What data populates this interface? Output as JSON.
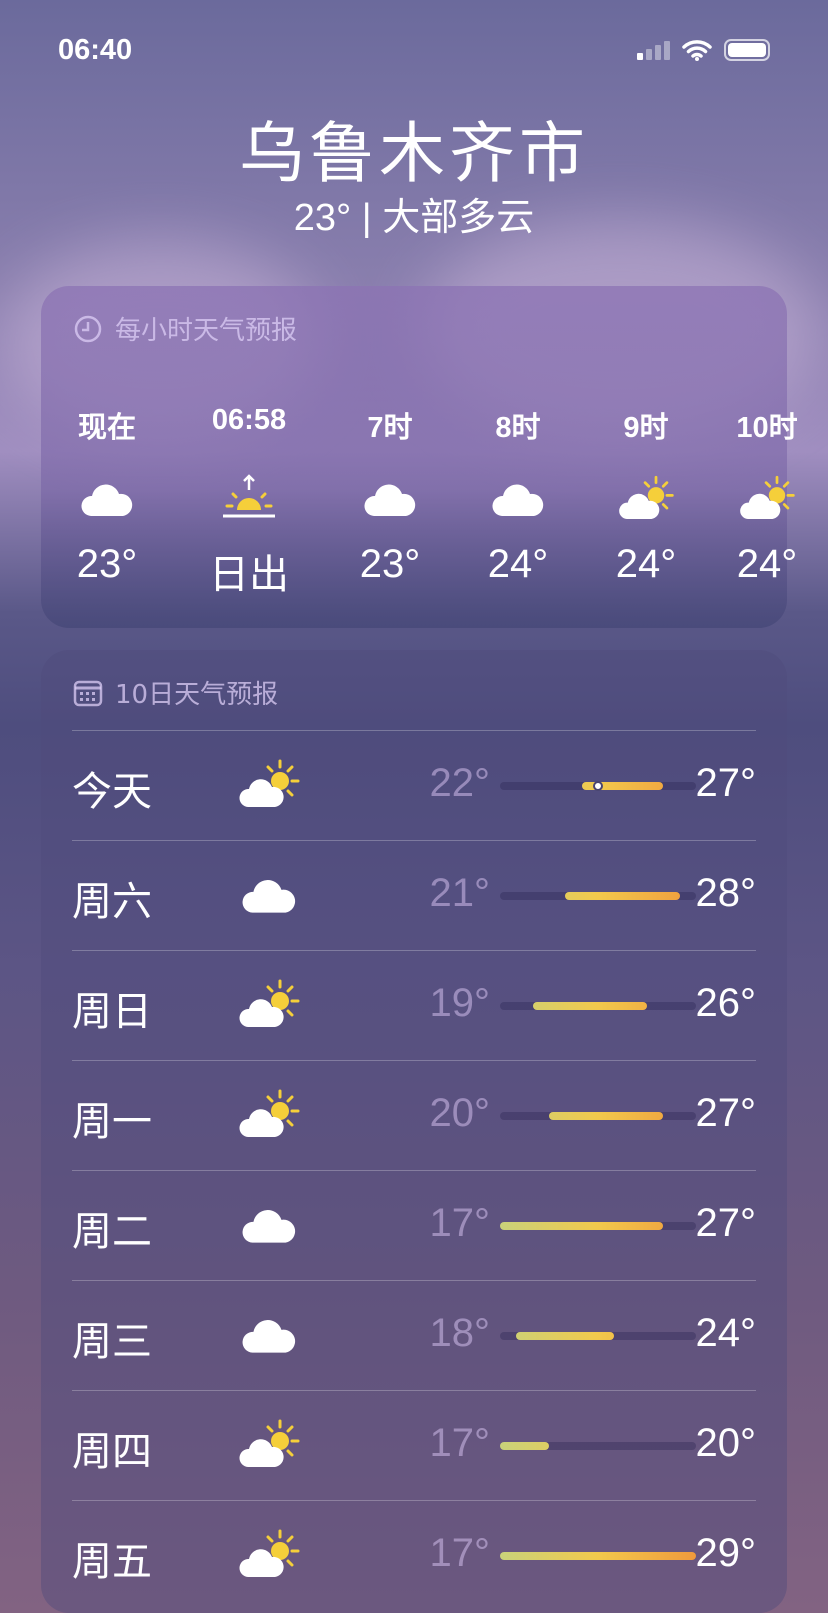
{
  "status": {
    "time": "06:40"
  },
  "header": {
    "city": "乌鲁木齐市",
    "subtitle": "23° | 大部多云"
  },
  "hourly": {
    "title": "每小时天气预报",
    "items": [
      {
        "label": "现在",
        "icon": "cloud-icon",
        "value": "23°"
      },
      {
        "label": "06:58",
        "icon": "sunrise-icon",
        "value": "日出"
      },
      {
        "label": "7时",
        "icon": "cloud-icon",
        "value": "23°"
      },
      {
        "label": "8时",
        "icon": "cloud-icon",
        "value": "24°"
      },
      {
        "label": "9时",
        "icon": "partly-cloudy-icon",
        "value": "24°"
      },
      {
        "label": "10时",
        "icon": "partly-cloudy-icon",
        "value": "24°"
      }
    ]
  },
  "daily": {
    "title": "10日天气预报",
    "range": [
      17,
      29
    ],
    "current": 23,
    "items": [
      {
        "day": "今天",
        "icon": "partly-cloudy-icon",
        "lo": "22°",
        "hi": "27°",
        "low": 22,
        "high": 27
      },
      {
        "day": "周六",
        "icon": "cloud-icon",
        "lo": "21°",
        "hi": "28°",
        "low": 21,
        "high": 28
      },
      {
        "day": "周日",
        "icon": "partly-cloudy-icon",
        "lo": "19°",
        "hi": "26°",
        "low": 19,
        "high": 26
      },
      {
        "day": "周一",
        "icon": "partly-cloudy-icon",
        "lo": "20°",
        "hi": "27°",
        "low": 20,
        "high": 27
      },
      {
        "day": "周二",
        "icon": "cloud-icon",
        "lo": "17°",
        "hi": "27°",
        "low": 17,
        "high": 27
      },
      {
        "day": "周三",
        "icon": "cloud-icon",
        "lo": "18°",
        "hi": "24°",
        "low": 18,
        "high": 24
      },
      {
        "day": "周四",
        "icon": "partly-cloudy-icon",
        "lo": "17°",
        "hi": "20°",
        "low": 17,
        "high": 20
      },
      {
        "day": "周五",
        "icon": "partly-cloudy-icon",
        "lo": "17°",
        "hi": "29°",
        "low": 17,
        "high": 29
      }
    ]
  },
  "colors": {
    "cool": "#c9d27a",
    "mid": "#f2c94c",
    "warm": "#f09a3c"
  }
}
